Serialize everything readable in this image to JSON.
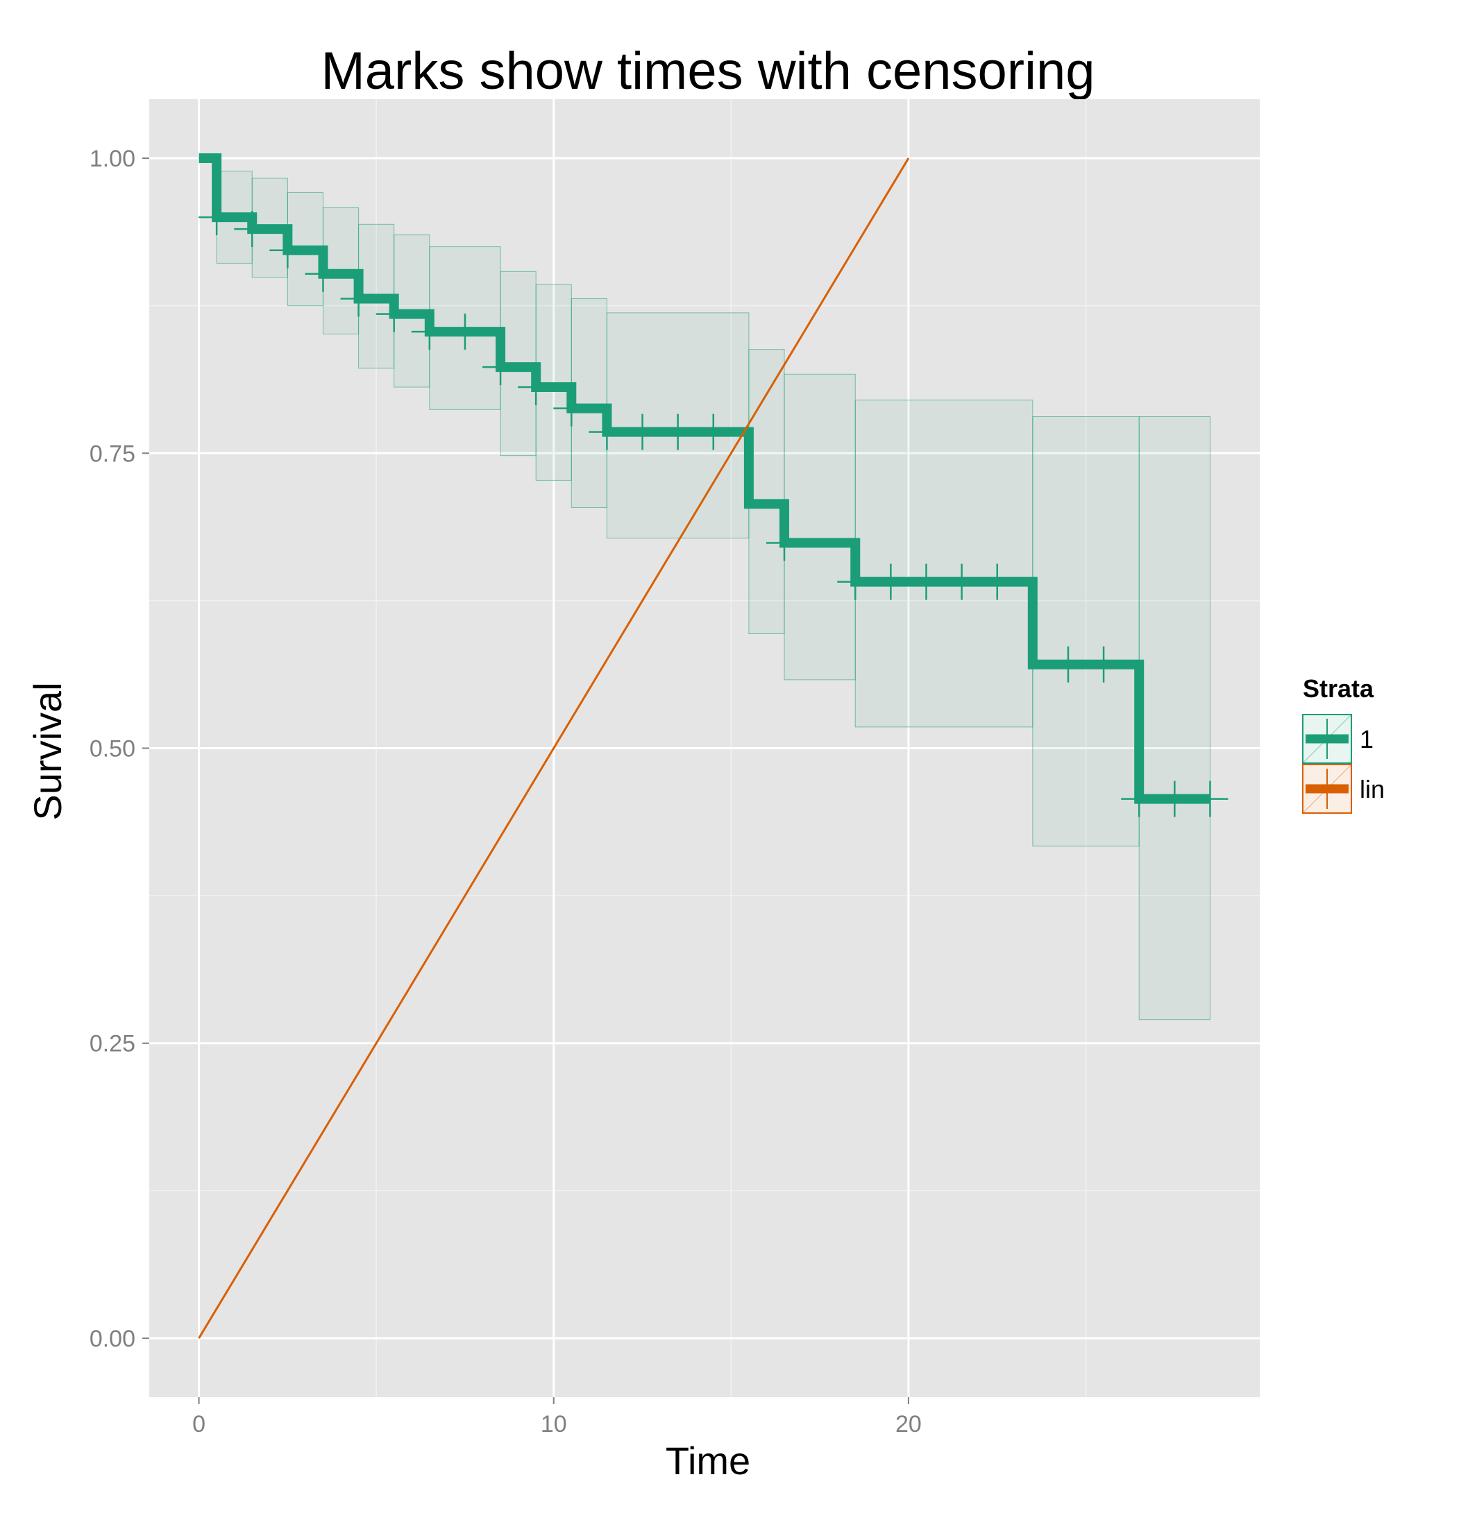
{
  "chart_data": {
    "type": "line",
    "title": "Marks show times with censoring",
    "xlabel": "Time",
    "ylabel": "Survival",
    "xlim": [
      -1.4,
      29.9
    ],
    "ylim": [
      -0.05,
      1.05
    ],
    "x_ticks": [
      0,
      10,
      20
    ],
    "x_tick_labels": [
      "0",
      "10",
      "20"
    ],
    "y_ticks": [
      0,
      0.25,
      0.5,
      0.75,
      1.0
    ],
    "y_tick_labels": [
      "0.00",
      "0.25",
      "0.50",
      "0.75",
      "1.00"
    ],
    "grid": true,
    "legend": {
      "title": "Strata",
      "position": "right",
      "entries": [
        {
          "label": "1",
          "color": "#1b9e77"
        },
        {
          "label": "lin",
          "color": "#d95f02"
        }
      ]
    },
    "series": [
      {
        "name": "1",
        "kind": "step-survival",
        "color": "#1b9e77",
        "steps": [
          {
            "x0": 0.0,
            "x1": 0.5,
            "surv": 1.0,
            "lower": null,
            "upper": null
          },
          {
            "x0": 0.5,
            "x1": 1.5,
            "surv": 0.95,
            "lower": 0.911,
            "upper": 0.989
          },
          {
            "x0": 1.5,
            "x1": 2.5,
            "surv": 0.94,
            "lower": 0.899,
            "upper": 0.983
          },
          {
            "x0": 2.5,
            "x1": 3.5,
            "surv": 0.922,
            "lower": 0.875,
            "upper": 0.971
          },
          {
            "x0": 3.5,
            "x1": 4.5,
            "surv": 0.902,
            "lower": 0.851,
            "upper": 0.958
          },
          {
            "x0": 4.5,
            "x1": 5.5,
            "surv": 0.881,
            "lower": 0.822,
            "upper": 0.944
          },
          {
            "x0": 5.5,
            "x1": 6.5,
            "surv": 0.868,
            "lower": 0.806,
            "upper": 0.935
          },
          {
            "x0": 6.5,
            "x1": 8.5,
            "surv": 0.853,
            "lower": 0.787,
            "upper": 0.925
          },
          {
            "x0": 8.5,
            "x1": 9.5,
            "surv": 0.823,
            "lower": 0.748,
            "upper": 0.904
          },
          {
            "x0": 9.5,
            "x1": 10.5,
            "surv": 0.806,
            "lower": 0.727,
            "upper": 0.893
          },
          {
            "x0": 10.5,
            "x1": 11.5,
            "surv": 0.788,
            "lower": 0.704,
            "upper": 0.881
          },
          {
            "x0": 11.5,
            "x1": 15.5,
            "surv": 0.768,
            "lower": 0.678,
            "upper": 0.869
          },
          {
            "x0": 15.5,
            "x1": 16.5,
            "surv": 0.707,
            "lower": 0.597,
            "upper": 0.838
          },
          {
            "x0": 16.5,
            "x1": 18.5,
            "surv": 0.674,
            "lower": 0.558,
            "upper": 0.817
          },
          {
            "x0": 18.5,
            "x1": 23.5,
            "surv": 0.641,
            "lower": 0.518,
            "upper": 0.795
          },
          {
            "x0": 23.5,
            "x1": 26.5,
            "surv": 0.571,
            "lower": 0.417,
            "upper": 0.781
          },
          {
            "x0": 26.5,
            "x1": 28.5,
            "surv": 0.457,
            "lower": 0.27,
            "upper": 0.781
          }
        ],
        "censor_marks": [
          {
            "x": 0.5,
            "y": 0.95
          },
          {
            "x": 1.5,
            "y": 0.94
          },
          {
            "x": 2.5,
            "y": 0.922
          },
          {
            "x": 3.5,
            "y": 0.902
          },
          {
            "x": 4.5,
            "y": 0.881
          },
          {
            "x": 5.5,
            "y": 0.868
          },
          {
            "x": 6.5,
            "y": 0.853
          },
          {
            "x": 7.5,
            "y": 0.853
          },
          {
            "x": 8.5,
            "y": 0.823
          },
          {
            "x": 9.5,
            "y": 0.806
          },
          {
            "x": 10.5,
            "y": 0.788
          },
          {
            "x": 11.5,
            "y": 0.768
          },
          {
            "x": 12.5,
            "y": 0.768
          },
          {
            "x": 13.5,
            "y": 0.768
          },
          {
            "x": 14.5,
            "y": 0.768
          },
          {
            "x": 16.5,
            "y": 0.674
          },
          {
            "x": 18.5,
            "y": 0.641
          },
          {
            "x": 19.5,
            "y": 0.641
          },
          {
            "x": 20.5,
            "y": 0.641
          },
          {
            "x": 21.5,
            "y": 0.641
          },
          {
            "x": 22.5,
            "y": 0.641
          },
          {
            "x": 24.5,
            "y": 0.571
          },
          {
            "x": 25.5,
            "y": 0.571
          },
          {
            "x": 26.5,
            "y": 0.457
          },
          {
            "x": 27.5,
            "y": 0.457
          },
          {
            "x": 28.5,
            "y": 0.457
          }
        ]
      },
      {
        "name": "lin",
        "kind": "line",
        "color": "#d95f02",
        "x": [
          0,
          20
        ],
        "y": [
          0,
          1
        ]
      }
    ]
  }
}
